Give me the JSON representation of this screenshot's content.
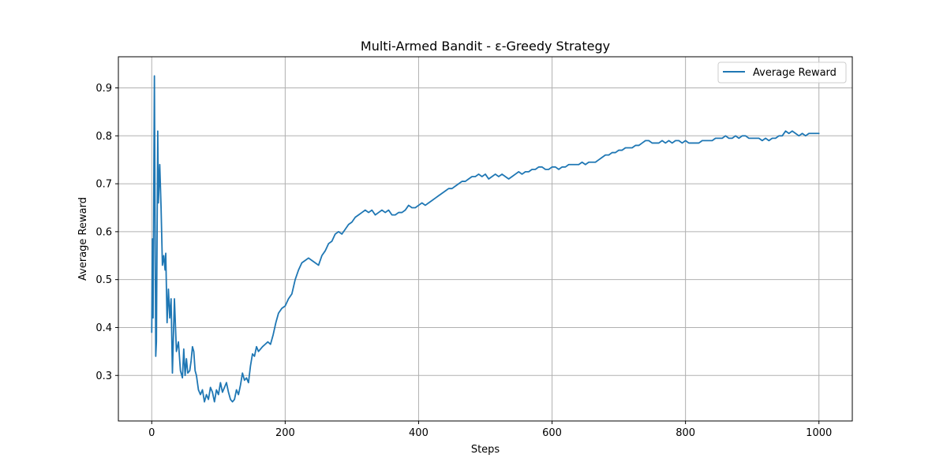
{
  "chart_data": {
    "type": "line",
    "title": "Multi-Armed Bandit - ε-Greedy Strategy",
    "xlabel": "Steps",
    "ylabel": "Average Reward",
    "xlim": [
      -50,
      1050
    ],
    "ylim": [
      0.205,
      0.965
    ],
    "xticks": [
      0,
      200,
      400,
      600,
      800,
      1000
    ],
    "xtick_labels": [
      "0",
      "200",
      "400",
      "600",
      "800",
      "1000"
    ],
    "yticks": [
      0.3,
      0.4,
      0.5,
      0.6,
      0.7,
      0.8,
      0.9
    ],
    "ytick_labels": [
      "0.3",
      "0.4",
      "0.5",
      "0.6",
      "0.7",
      "0.8",
      "0.9"
    ],
    "grid": true,
    "legend_position": "top-right",
    "series": [
      {
        "name": "Average Reward",
        "color": "#1f77b4",
        "points": [
          [
            0,
            0.39
          ],
          [
            1,
            0.585
          ],
          [
            2,
            0.42
          ],
          [
            4,
            0.925
          ],
          [
            6,
            0.34
          ],
          [
            7,
            0.37
          ],
          [
            9,
            0.81
          ],
          [
            10,
            0.66
          ],
          [
            12,
            0.74
          ],
          [
            14,
            0.65
          ],
          [
            16,
            0.53
          ],
          [
            18,
            0.55
          ],
          [
            20,
            0.52
          ],
          [
            21,
            0.555
          ],
          [
            23,
            0.41
          ],
          [
            25,
            0.48
          ],
          [
            27,
            0.42
          ],
          [
            29,
            0.46
          ],
          [
            31,
            0.305
          ],
          [
            34,
            0.46
          ],
          [
            37,
            0.35
          ],
          [
            40,
            0.37
          ],
          [
            43,
            0.31
          ],
          [
            46,
            0.295
          ],
          [
            48,
            0.355
          ],
          [
            50,
            0.3
          ],
          [
            52,
            0.335
          ],
          [
            54,
            0.305
          ],
          [
            57,
            0.31
          ],
          [
            59,
            0.33
          ],
          [
            61,
            0.36
          ],
          [
            63,
            0.35
          ],
          [
            65,
            0.31
          ],
          [
            67,
            0.3
          ],
          [
            70,
            0.27
          ],
          [
            73,
            0.26
          ],
          [
            76,
            0.27
          ],
          [
            79,
            0.245
          ],
          [
            82,
            0.26
          ],
          [
            85,
            0.25
          ],
          [
            88,
            0.275
          ],
          [
            91,
            0.265
          ],
          [
            94,
            0.245
          ],
          [
            97,
            0.27
          ],
          [
            100,
            0.26
          ],
          [
            103,
            0.285
          ],
          [
            106,
            0.265
          ],
          [
            109,
            0.275
          ],
          [
            112,
            0.285
          ],
          [
            115,
            0.265
          ],
          [
            118,
            0.25
          ],
          [
            121,
            0.245
          ],
          [
            124,
            0.25
          ],
          [
            127,
            0.27
          ],
          [
            130,
            0.26
          ],
          [
            133,
            0.28
          ],
          [
            136,
            0.305
          ],
          [
            139,
            0.29
          ],
          [
            142,
            0.295
          ],
          [
            145,
            0.285
          ],
          [
            148,
            0.32
          ],
          [
            151,
            0.345
          ],
          [
            154,
            0.34
          ],
          [
            157,
            0.36
          ],
          [
            160,
            0.35
          ],
          [
            163,
            0.355
          ],
          [
            166,
            0.36
          ],
          [
            170,
            0.365
          ],
          [
            174,
            0.37
          ],
          [
            178,
            0.365
          ],
          [
            182,
            0.385
          ],
          [
            186,
            0.41
          ],
          [
            190,
            0.43
          ],
          [
            195,
            0.44
          ],
          [
            200,
            0.445
          ],
          [
            205,
            0.46
          ],
          [
            210,
            0.47
          ],
          [
            215,
            0.5
          ],
          [
            220,
            0.52
          ],
          [
            225,
            0.535
          ],
          [
            230,
            0.54
          ],
          [
            235,
            0.545
          ],
          [
            240,
            0.54
          ],
          [
            245,
            0.535
          ],
          [
            250,
            0.53
          ],
          [
            255,
            0.55
          ],
          [
            260,
            0.56
          ],
          [
            265,
            0.575
          ],
          [
            270,
            0.58
          ],
          [
            275,
            0.595
          ],
          [
            280,
            0.6
          ],
          [
            285,
            0.595
          ],
          [
            290,
            0.605
          ],
          [
            295,
            0.615
          ],
          [
            300,
            0.62
          ],
          [
            305,
            0.63
          ],
          [
            310,
            0.635
          ],
          [
            315,
            0.64
          ],
          [
            320,
            0.645
          ],
          [
            325,
            0.64
          ],
          [
            330,
            0.645
          ],
          [
            335,
            0.635
          ],
          [
            340,
            0.64
          ],
          [
            345,
            0.645
          ],
          [
            350,
            0.64
          ],
          [
            355,
            0.645
          ],
          [
            360,
            0.635
          ],
          [
            365,
            0.635
          ],
          [
            370,
            0.64
          ],
          [
            375,
            0.64
          ],
          [
            380,
            0.645
          ],
          [
            385,
            0.655
          ],
          [
            390,
            0.65
          ],
          [
            395,
            0.65
          ],
          [
            400,
            0.655
          ],
          [
            405,
            0.66
          ],
          [
            410,
            0.655
          ],
          [
            415,
            0.66
          ],
          [
            420,
            0.665
          ],
          [
            425,
            0.67
          ],
          [
            430,
            0.675
          ],
          [
            435,
            0.68
          ],
          [
            440,
            0.685
          ],
          [
            445,
            0.69
          ],
          [
            450,
            0.69
          ],
          [
            455,
            0.695
          ],
          [
            460,
            0.7
          ],
          [
            465,
            0.705
          ],
          [
            470,
            0.705
          ],
          [
            475,
            0.71
          ],
          [
            480,
            0.715
          ],
          [
            485,
            0.715
          ],
          [
            490,
            0.72
          ],
          [
            495,
            0.715
          ],
          [
            500,
            0.72
          ],
          [
            505,
            0.71
          ],
          [
            510,
            0.715
          ],
          [
            515,
            0.72
          ],
          [
            520,
            0.715
          ],
          [
            525,
            0.72
          ],
          [
            530,
            0.715
          ],
          [
            535,
            0.71
          ],
          [
            540,
            0.715
          ],
          [
            545,
            0.72
          ],
          [
            550,
            0.725
          ],
          [
            555,
            0.72
          ],
          [
            560,
            0.725
          ],
          [
            565,
            0.725
          ],
          [
            570,
            0.73
          ],
          [
            575,
            0.73
          ],
          [
            580,
            0.735
          ],
          [
            585,
            0.735
          ],
          [
            590,
            0.73
          ],
          [
            595,
            0.73
          ],
          [
            600,
            0.735
          ],
          [
            605,
            0.735
          ],
          [
            610,
            0.73
          ],
          [
            615,
            0.735
          ],
          [
            620,
            0.735
          ],
          [
            625,
            0.74
          ],
          [
            630,
            0.74
          ],
          [
            635,
            0.74
          ],
          [
            640,
            0.74
          ],
          [
            645,
            0.745
          ],
          [
            650,
            0.74
          ],
          [
            655,
            0.745
          ],
          [
            660,
            0.745
          ],
          [
            665,
            0.745
          ],
          [
            670,
            0.75
          ],
          [
            675,
            0.755
          ],
          [
            680,
            0.76
          ],
          [
            685,
            0.76
          ],
          [
            690,
            0.765
          ],
          [
            695,
            0.765
          ],
          [
            700,
            0.77
          ],
          [
            705,
            0.77
          ],
          [
            710,
            0.775
          ],
          [
            715,
            0.775
          ],
          [
            720,
            0.775
          ],
          [
            725,
            0.78
          ],
          [
            730,
            0.78
          ],
          [
            735,
            0.785
          ],
          [
            740,
            0.79
          ],
          [
            745,
            0.79
          ],
          [
            750,
            0.785
          ],
          [
            755,
            0.785
          ],
          [
            760,
            0.785
          ],
          [
            765,
            0.79
          ],
          [
            770,
            0.785
          ],
          [
            775,
            0.79
          ],
          [
            780,
            0.785
          ],
          [
            785,
            0.79
          ],
          [
            790,
            0.79
          ],
          [
            795,
            0.785
          ],
          [
            800,
            0.79
          ],
          [
            805,
            0.785
          ],
          [
            810,
            0.785
          ],
          [
            815,
            0.785
          ],
          [
            820,
            0.785
          ],
          [
            825,
            0.79
          ],
          [
            830,
            0.79
          ],
          [
            835,
            0.79
          ],
          [
            840,
            0.79
          ],
          [
            845,
            0.795
          ],
          [
            850,
            0.795
          ],
          [
            855,
            0.795
          ],
          [
            860,
            0.8
          ],
          [
            865,
            0.795
          ],
          [
            870,
            0.795
          ],
          [
            875,
            0.8
          ],
          [
            880,
            0.795
          ],
          [
            885,
            0.8
          ],
          [
            890,
            0.8
          ],
          [
            895,
            0.795
          ],
          [
            900,
            0.795
          ],
          [
            905,
            0.795
          ],
          [
            910,
            0.795
          ],
          [
            915,
            0.79
          ],
          [
            920,
            0.795
          ],
          [
            925,
            0.79
          ],
          [
            930,
            0.795
          ],
          [
            935,
            0.795
          ],
          [
            940,
            0.8
          ],
          [
            945,
            0.8
          ],
          [
            950,
            0.81
          ],
          [
            955,
            0.805
          ],
          [
            960,
            0.81
          ],
          [
            965,
            0.805
          ],
          [
            970,
            0.8
          ],
          [
            975,
            0.805
          ],
          [
            980,
            0.8
          ],
          [
            985,
            0.805
          ],
          [
            990,
            0.805
          ],
          [
            995,
            0.805
          ],
          [
            1000,
            0.805
          ]
        ]
      }
    ]
  }
}
